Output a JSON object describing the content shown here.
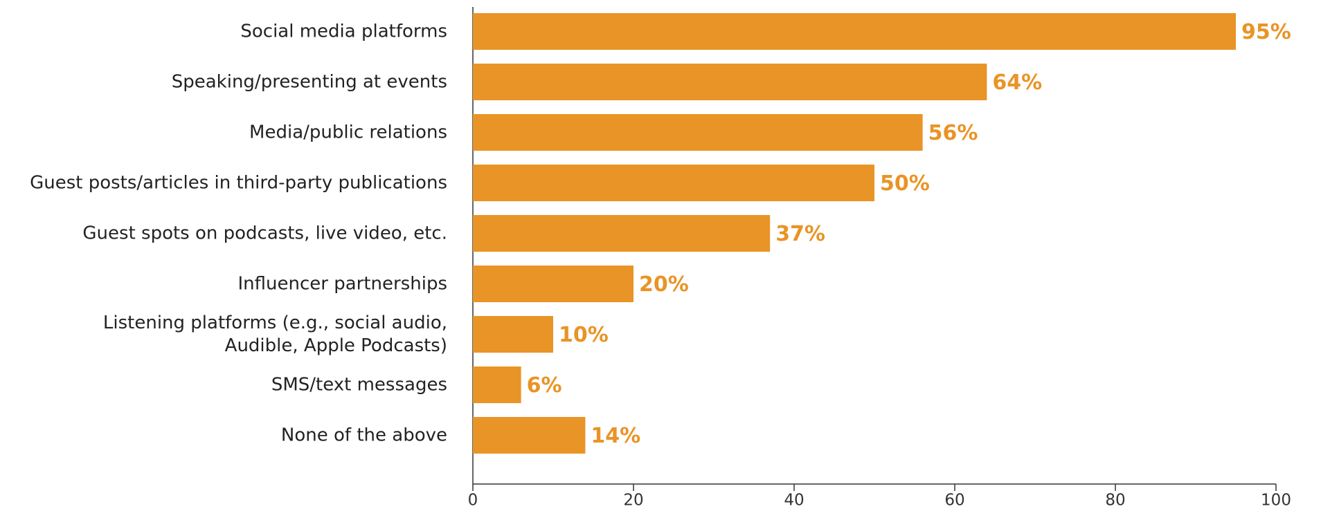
{
  "chart_data": {
    "type": "barh",
    "categories": [
      "Social media platforms",
      "Speaking/presenting at events",
      "Media/public relations",
      "Guest posts/articles in third-party publications",
      "Guest spots on podcasts, live video, etc.",
      "Influencer partnerships",
      "Listening platforms (e.g., social audio,\nAudible, Apple Podcasts)",
      "SMS/text messages",
      "None of the above"
    ],
    "values": [
      95,
      64,
      56,
      50,
      37,
      20,
      10,
      6,
      14
    ],
    "value_labels": [
      "95%",
      "64%",
      "56%",
      "50%",
      "37%",
      "20%",
      "10%",
      "6%",
      "14%"
    ],
    "color": "#e99426",
    "xlim": [
      0,
      100
    ],
    "xticks": [
      0,
      20,
      40,
      60,
      80,
      100
    ]
  }
}
